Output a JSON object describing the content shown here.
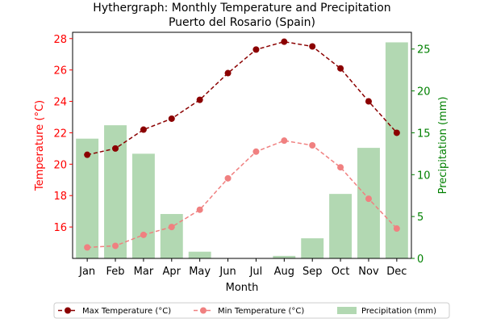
{
  "chart_data": {
    "type": "line",
    "title": "Hythergraph: Monthly Temperature and Precipitation",
    "subtitle": "Puerto del Rosario (Spain)",
    "xlabel": "Month",
    "ylabel_left": "Temperature (°C)",
    "ylabel_right": "Precipitation (mm)",
    "categories": [
      "Jan",
      "Feb",
      "Mar",
      "Apr",
      "May",
      "Jun",
      "Jul",
      "Aug",
      "Sep",
      "Oct",
      "Nov",
      "Dec"
    ],
    "ylim_left": [
      14.0,
      28.4
    ],
    "ylim_right": [
      0,
      27
    ],
    "yticks_left": [
      16,
      18,
      20,
      22,
      24,
      26,
      28
    ],
    "yticks_right": [
      0,
      5,
      10,
      15,
      20,
      25
    ],
    "series": [
      {
        "name": "Max Temperature (°C)",
        "kind": "line",
        "axis": "left",
        "color": "#8b0000",
        "values": [
          20.6,
          21.0,
          22.2,
          22.9,
          24.1,
          25.8,
          27.3,
          27.8,
          27.5,
          26.1,
          24.0,
          22.0
        ]
      },
      {
        "name": "Min Temperature (°C)",
        "kind": "line",
        "axis": "left",
        "color": "#f08080",
        "values": [
          14.7,
          14.8,
          15.5,
          16.0,
          17.1,
          19.1,
          20.8,
          21.5,
          21.2,
          19.8,
          17.8,
          15.9
        ]
      },
      {
        "name": "Precipitation (mm)",
        "kind": "bar",
        "axis": "right",
        "color": "#b2d8b2",
        "values": [
          14.3,
          15.9,
          12.5,
          5.3,
          0.8,
          0.0,
          0.0,
          0.3,
          2.4,
          7.7,
          13.2,
          25.8
        ]
      }
    ],
    "legend": {
      "position": "bottom",
      "entries": [
        "Max Temperature (°C)",
        "Min Temperature (°C)",
        "Precipitation (mm)"
      ]
    },
    "colors": {
      "left_axis": "#ff0000",
      "right_axis": "#008000"
    },
    "grid": false
  }
}
